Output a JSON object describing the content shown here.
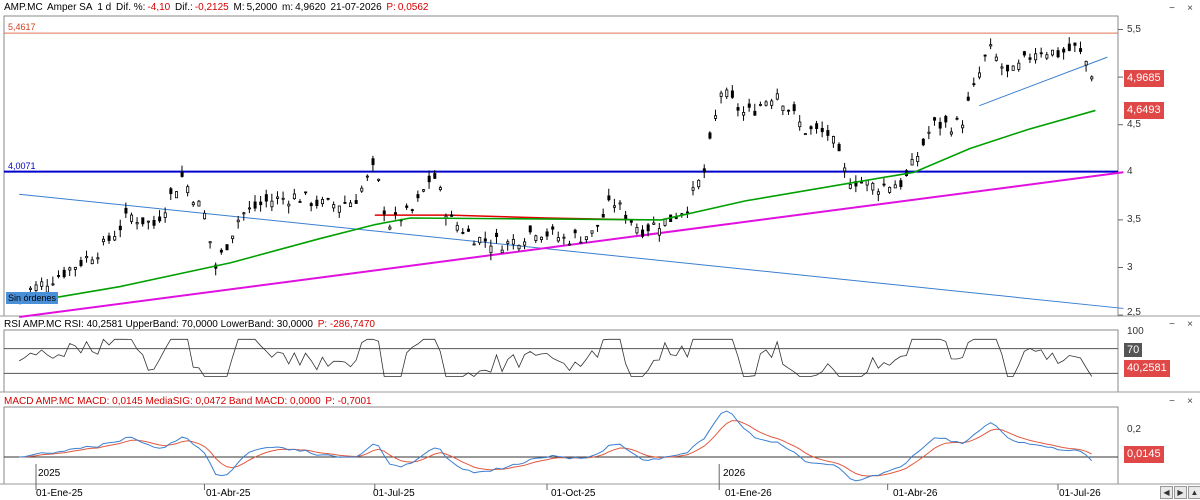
{
  "header": {
    "main": {
      "ticker": "AMP.MC",
      "name": "Amper SA",
      "period": "1 d",
      "dif_pct_label": "Dif. %:",
      "dif_pct": "-4,10",
      "dif_label": "Dif.:",
      "dif": "-0,2125",
      "max_label": "M:",
      "max": "5,2000",
      "min_label": "m:",
      "min": "4,9620",
      "date": "21-07-2026",
      "p_label": "P:",
      "p": "0,0562"
    },
    "rsi": {
      "text": "RSI AMP.MC RSI: 40,2581 UpperBand: 70,0000 LowerBand: 30,0000",
      "p": "P: -286,7470"
    },
    "macd": {
      "text": "MACD AMP.MC MACD: 0,0145 MediaSIG: 0,0472 Band MACD: 0,0000",
      "p": "P: -0,7001"
    }
  },
  "window_controls": [
    "−",
    "×"
  ],
  "level_labels": {
    "resistance": "5,4617",
    "support": "4,0071"
  },
  "price_tags": {
    "last": "4,9685",
    "ma": "4,6493"
  },
  "rsi_tag": "40,2581",
  "macd_tag": "0,0145",
  "badge": "Sin órdenes",
  "nav_buttons": [
    "◀",
    "▶",
    "▲"
  ],
  "colors": {
    "candle": "#000000",
    "ma_green": "#00a000",
    "trend_magenta": "#e010e0",
    "support_blue": "#0000cc",
    "resistance_orange": "#e07050",
    "down_line_blue": "#3a7fd0",
    "red_arc": "#e00000",
    "macd_blue": "#3a7fd0",
    "macd_red": "#e05a40",
    "tag_red": "#e04848"
  },
  "chart_data": [
    {
      "type": "candlestick",
      "series_name": "AMP.MC",
      "x_tick_labels": [
        "01-Ene-25",
        "01-Abr-25",
        "01-Jul-25",
        "01-Oct-25",
        "01-Ene-26",
        "01-Abr-26",
        "01-Jul-26"
      ],
      "year_labels": [
        "2025",
        "2026"
      ],
      "y_ticks": [
        "2,5",
        "3",
        "3,5",
        "4",
        "4,5",
        "5",
        "5,5"
      ],
      "ylim": [
        2.5,
        5.6
      ],
      "close_path": [
        [
          "2024-12-23",
          2.72
        ],
        [
          "2025-01-02",
          2.8
        ],
        [
          "2025-01-20",
          3.0
        ],
        [
          "2025-02-05",
          3.2
        ],
        [
          "2025-02-20",
          3.55
        ],
        [
          "2025-03-05",
          3.45
        ],
        [
          "2025-03-20",
          3.95
        ],
        [
          "2025-04-01",
          3.55
        ],
        [
          "2025-04-07",
          3.0
        ],
        [
          "2025-04-20",
          3.55
        ],
        [
          "2025-05-05",
          3.7
        ],
        [
          "2025-05-20",
          3.75
        ],
        [
          "2025-06-05",
          3.65
        ],
        [
          "2025-06-20",
          3.7
        ],
        [
          "2025-07-01",
          4.05
        ],
        [
          "2025-07-08",
          3.45
        ],
        [
          "2025-07-22",
          3.6
        ],
        [
          "2025-08-01",
          4.0
        ],
        [
          "2025-08-10",
          3.5
        ],
        [
          "2025-08-25",
          3.3
        ],
        [
          "2025-09-10",
          3.25
        ],
        [
          "2025-09-25",
          3.4
        ],
        [
          "2025-10-10",
          3.3
        ],
        [
          "2025-10-25",
          3.35
        ],
        [
          "2025-11-05",
          3.7
        ],
        [
          "2025-11-20",
          3.4
        ],
        [
          "2025-12-05",
          3.5
        ],
        [
          "2025-12-15",
          3.65
        ],
        [
          "2025-12-24",
          4.0
        ],
        [
          "2026-01-02",
          4.85
        ],
        [
          "2026-01-15",
          4.6
        ],
        [
          "2026-02-01",
          4.85
        ],
        [
          "2026-02-15",
          4.45
        ],
        [
          "2026-03-01",
          4.4
        ],
        [
          "2026-03-10",
          3.95
        ],
        [
          "2026-03-25",
          3.85
        ],
        [
          "2026-04-10",
          3.9
        ],
        [
          "2026-04-25",
          4.5
        ],
        [
          "2026-05-10",
          4.5
        ],
        [
          "2026-05-25",
          5.3
        ],
        [
          "2026-06-05",
          5.0
        ],
        [
          "2026-06-20",
          5.3
        ],
        [
          "2026-07-01",
          5.25
        ],
        [
          "2026-07-10",
          5.3
        ],
        [
          "2026-07-15",
          5.2
        ],
        [
          "2026-07-21",
          4.97
        ]
      ],
      "overlays": {
        "moving_average_green": [
          [
            "2024-12-23",
            2.62
          ],
          [
            "2025-02-15",
            2.8
          ],
          [
            "2025-04-15",
            3.05
          ],
          [
            "2025-06-01",
            3.3
          ],
          [
            "2025-07-01",
            3.45
          ],
          [
            "2025-07-20",
            3.52
          ],
          [
            "2025-12-01",
            3.5
          ],
          [
            "2026-01-15",
            3.7
          ],
          [
            "2026-03-01",
            3.85
          ],
          [
            "2026-04-15",
            4.0
          ],
          [
            "2026-05-15",
            4.25
          ],
          [
            "2026-06-15",
            4.45
          ],
          [
            "2026-07-21",
            4.65
          ]
        ],
        "support_level": 4.0071,
        "resistance_level": 5.4617,
        "magenta_trendline": [
          [
            "2024-12-23",
            2.48
          ],
          [
            "2026-07-21",
            4.0
          ]
        ],
        "blue_downtrend": [
          [
            "2024-12-23",
            3.77
          ],
          [
            "2026-07-21",
            2.57
          ]
        ],
        "blue_uptrend_short": [
          [
            "2026-05-20",
            4.7
          ],
          [
            "2026-07-21",
            5.21
          ]
        ],
        "red_arc": [
          [
            "2025-07-01",
            3.55
          ],
          [
            "2025-08-10",
            3.55
          ],
          [
            "2025-10-01",
            3.52
          ],
          [
            "2025-11-20",
            3.5
          ]
        ]
      }
    },
    {
      "type": "line",
      "name": "RSI",
      "ylim": [
        0,
        100
      ],
      "y_ticks": [
        "100",
        "70"
      ],
      "bands": [
        30,
        70
      ],
      "last": 40.2581
    },
    {
      "type": "line",
      "name": "MACD",
      "y_ticks": [
        "0,2",
        "0,2"
      ],
      "last_macd": 0.0145,
      "last_signal": 0.0472
    }
  ]
}
